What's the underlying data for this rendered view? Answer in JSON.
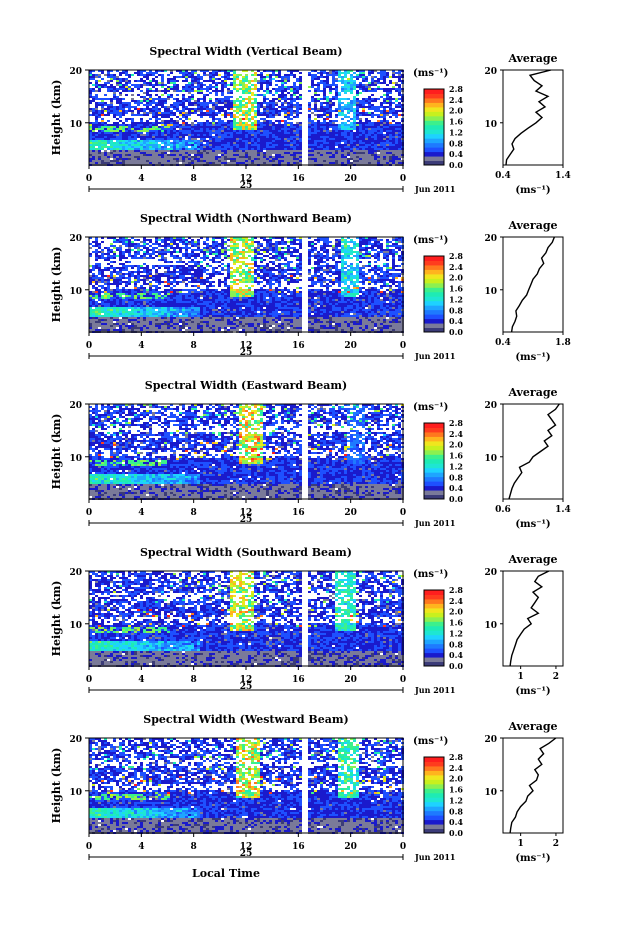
{
  "figure": {
    "colorbar_unit": "(ms⁻¹)",
    "colorbar_ticks": [
      "0.0",
      "0.4",
      "0.8",
      "1.2",
      "1.6",
      "2.0",
      "2.4",
      "2.8"
    ],
    "colorbar_colors": [
      "#3b3b78",
      "#7a7a99",
      "#1a1acc",
      "#1e50ff",
      "#1e7aff",
      "#1ea5ff",
      "#1ed2ff",
      "#1ee6d2",
      "#1eebb4",
      "#3cf08c",
      "#8cf050",
      "#c8f01e",
      "#f0e61e",
      "#ffb41e",
      "#ff781e",
      "#ff3c1e",
      "#ff1e1e"
    ],
    "date_label": "Jun 2011",
    "day_label": "25",
    "x_tick_labels": [
      "0",
      "4",
      "8",
      "12",
      "16",
      "20",
      "0"
    ],
    "y_label": "Height (km)",
    "y_tick_labels": [
      "20",
      "10"
    ],
    "avg_title": "Average",
    "avg_unit": "(ms⁻¹)",
    "x_axis_label": "Local Time"
  },
  "chart_data": [
    {
      "type": "heatmap",
      "title": "Spectral Width (Vertical Beam)",
      "xlabel": "",
      "ylabel": "Height (km)",
      "xlim": [
        0,
        24
      ],
      "ylim": [
        2,
        20
      ],
      "clim": [
        0.0,
        3.0
      ],
      "gap_hour": 16.3,
      "spikes": [
        [
          11.8,
          0.82
        ],
        [
          19.6,
          0.45
        ]
      ],
      "average_profile": {
        "title": "Average",
        "xlabel": "(ms⁻¹)",
        "xlim": [
          0.4,
          1.4
        ],
        "x_tick_labels": [
          "0.4",
          "1.4"
        ],
        "ylim": [
          2,
          20
        ],
        "y_tick_labels": [
          "20",
          "10"
        ],
        "height_km": [
          2,
          3,
          4,
          5,
          6,
          7,
          8,
          9,
          10,
          11,
          12,
          13,
          14,
          15,
          16,
          17,
          18,
          19,
          20
        ],
        "width_ms": [
          0.45,
          0.46,
          0.52,
          0.58,
          0.55,
          0.6,
          0.7,
          0.82,
          0.95,
          1.05,
          0.95,
          1.1,
          1.0,
          1.15,
          0.95,
          1.05,
          0.92,
          0.85,
          1.2
        ]
      }
    },
    {
      "type": "heatmap",
      "title": "Spectral Width (Northward Beam)",
      "xlabel": "",
      "ylabel": "Height (km)",
      "xlim": [
        0,
        24
      ],
      "ylim": [
        2,
        20
      ],
      "clim": [
        0.0,
        3.0
      ],
      "gap_hour": 16.3,
      "spikes": [
        [
          11.5,
          0.85
        ],
        [
          19.8,
          0.5
        ]
      ],
      "average_profile": {
        "title": "Average",
        "xlabel": "(ms⁻¹)",
        "xlim": [
          0.4,
          1.8
        ],
        "x_tick_labels": [
          "0.4",
          "1.8"
        ],
        "ylim": [
          2,
          20
        ],
        "y_tick_labels": [
          "20",
          "10"
        ],
        "height_km": [
          2,
          3,
          4,
          5,
          6,
          7,
          8,
          9,
          10,
          11,
          12,
          13,
          14,
          15,
          16,
          17,
          18,
          19,
          20
        ],
        "width_ms": [
          0.6,
          0.62,
          0.68,
          0.72,
          0.7,
          0.78,
          0.85,
          0.95,
          1.0,
          1.05,
          1.1,
          1.2,
          1.25,
          1.35,
          1.3,
          1.4,
          1.45,
          1.55,
          1.6
        ]
      }
    },
    {
      "type": "heatmap",
      "title": "Spectral Width (Eastward Beam)",
      "xlabel": "",
      "ylabel": "Height (km)",
      "xlim": [
        0,
        24
      ],
      "ylim": [
        2,
        20
      ],
      "clim": [
        0.0,
        3.0
      ],
      "gap_hour": 16.3,
      "spikes": [
        [
          12.2,
          0.9
        ],
        [
          20.3,
          0.3
        ]
      ],
      "average_profile": {
        "title": "Average",
        "xlabel": "(ms⁻¹)",
        "xlim": [
          0.6,
          1.4
        ],
        "x_tick_labels": [
          "0.6",
          "1.4"
        ],
        "ylim": [
          2,
          20
        ],
        "y_tick_labels": [
          "20",
          "10"
        ],
        "height_km": [
          2,
          3,
          4,
          5,
          6,
          7,
          8,
          9,
          10,
          11,
          12,
          13,
          14,
          15,
          16,
          17,
          18,
          19,
          20
        ],
        "width_ms": [
          0.68,
          0.7,
          0.72,
          0.75,
          0.8,
          0.85,
          0.82,
          0.95,
          1.0,
          1.1,
          1.2,
          1.15,
          1.25,
          1.2,
          1.3,
          1.25,
          1.2,
          1.3,
          1.35
        ]
      }
    },
    {
      "type": "heatmap",
      "title": "Spectral Width (Southward Beam)",
      "xlabel": "",
      "ylabel": "Height (km)",
      "xlim": [
        0,
        24
      ],
      "ylim": [
        2,
        20
      ],
      "clim": [
        0.0,
        3.0
      ],
      "gap_hour": 16.3,
      "spikes": [
        [
          11.6,
          0.85
        ],
        [
          19.5,
          0.6
        ]
      ],
      "average_profile": {
        "title": "Average",
        "xlabel": "(ms⁻¹)",
        "xlim": [
          0.5,
          2.2
        ],
        "x_tick_labels": [
          "1",
          "2"
        ],
        "ylim": [
          2,
          20
        ],
        "y_tick_labels": [
          "20",
          "10"
        ],
        "height_km": [
          2,
          3,
          4,
          5,
          6,
          7,
          8,
          9,
          10,
          11,
          12,
          13,
          14,
          15,
          16,
          17,
          18,
          19,
          20
        ],
        "width_ms": [
          0.7,
          0.72,
          0.75,
          0.8,
          0.85,
          0.9,
          1.0,
          1.1,
          1.3,
          1.2,
          1.5,
          1.3,
          1.4,
          1.5,
          1.35,
          1.6,
          1.4,
          1.5,
          1.8
        ]
      }
    },
    {
      "type": "heatmap",
      "title": "Spectral Width (Westward Beam)",
      "xlabel": "Local Time",
      "ylabel": "Height (km)",
      "xlim": [
        0,
        24
      ],
      "ylim": [
        2,
        20
      ],
      "clim": [
        0.0,
        3.0
      ],
      "gap_hour": 16.3,
      "spikes": [
        [
          12.0,
          0.88
        ],
        [
          19.7,
          0.62
        ]
      ],
      "average_profile": {
        "title": "Average",
        "xlabel": "(ms⁻¹)",
        "xlim": [
          0.5,
          2.2
        ],
        "x_tick_labels": [
          "1",
          "2"
        ],
        "ylim": [
          2,
          20
        ],
        "y_tick_labels": [
          "20",
          "10"
        ],
        "height_km": [
          2,
          3,
          4,
          5,
          6,
          7,
          8,
          9,
          10,
          11,
          12,
          13,
          14,
          15,
          16,
          17,
          18,
          19,
          20
        ],
        "width_ms": [
          0.7,
          0.72,
          0.75,
          0.85,
          0.9,
          1.0,
          1.15,
          1.2,
          1.35,
          1.25,
          1.45,
          1.5,
          1.4,
          1.6,
          1.5,
          1.65,
          1.55,
          1.8,
          2.0
        ]
      }
    }
  ]
}
